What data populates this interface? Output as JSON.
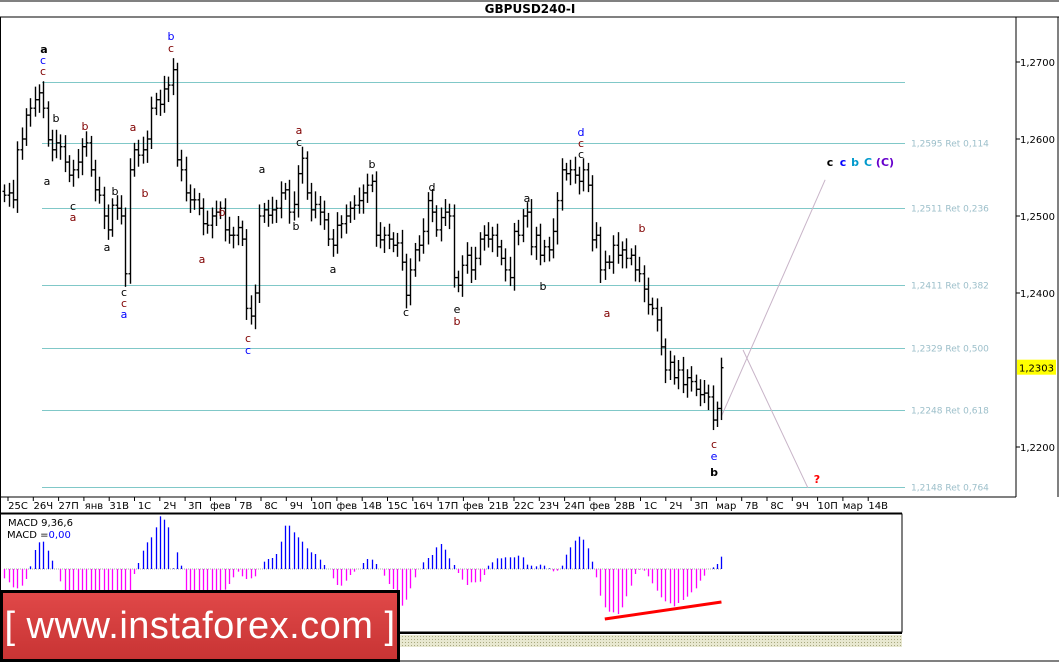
{
  "title": "GBPUSD240-I",
  "colors": {
    "bars": "#000000",
    "fib_line": "#80c8c8",
    "fib_text": "#9cbfca",
    "macd_positive": "#0000ff",
    "macd_negative": "#ff00ff",
    "divergence_line": "#ff0000",
    "current_price_bg": "#ffff00",
    "projection_line": "#c8b4c8",
    "logo_bg": "#d63c3c"
  },
  "chart_data": {
    "type": "ohlc",
    "symbol": "GBPUSD240-I",
    "ylim": [
      1.2138,
      1.2757
    ],
    "y_ticks": [
      {
        "value": 1.27,
        "label": "1,2700"
      },
      {
        "value": 1.26,
        "label": "1,2600"
      },
      {
        "value": 1.25,
        "label": "1,2500"
      },
      {
        "value": 1.24,
        "label": "1,2400"
      },
      {
        "value": 1.22,
        "label": "1,2200"
      }
    ],
    "current_price": {
      "value": 1.2303,
      "label": "1,2303"
    },
    "x_tick_labels": [
      "25С",
      "26Ч",
      "27П",
      "янв",
      "31В",
      "1С",
      "2Ч",
      "3П",
      "фев",
      "7В",
      "8С",
      "9Ч",
      "10П",
      "фев",
      "14В",
      "15С",
      "16Ч",
      "17П",
      "фев",
      "21В",
      "22С",
      "23Ч",
      "24П",
      "фев",
      "28В",
      "1С",
      "2Ч",
      "3П",
      "мар",
      "7В",
      "8С",
      "9Ч",
      "10П",
      "мар",
      "14В"
    ],
    "closes": [
      1.2527,
      1.253,
      1.2521,
      1.2586,
      1.26,
      1.2631,
      1.264,
      1.2651,
      1.266,
      1.264,
      1.2599,
      1.2586,
      1.2595,
      1.259,
      1.257,
      1.2553,
      1.256,
      1.257,
      1.259,
      1.2595,
      1.256,
      1.2534,
      1.2527,
      1.25,
      1.2482,
      1.2514,
      1.251,
      1.25,
      1.2425,
      1.256,
      1.2586,
      1.2579,
      1.2586,
      1.26,
      1.264,
      1.2651,
      1.2645,
      1.2665,
      1.267,
      1.269,
      1.2573,
      1.256,
      1.253,
      1.2521,
      1.2521,
      1.251,
      1.249,
      1.2488,
      1.25,
      1.2505,
      1.251,
      1.2482,
      1.2475,
      1.2475,
      1.2485,
      1.247,
      1.238,
      1.237,
      1.24,
      1.25,
      1.2508,
      1.2501,
      1.2508,
      1.251,
      1.253,
      1.2534,
      1.2505,
      1.2515,
      1.2555,
      1.2575,
      1.253,
      1.2508,
      1.2515,
      1.2505,
      1.2495,
      1.247,
      1.2462,
      1.2488,
      1.249,
      1.25,
      1.251,
      1.2514,
      1.252,
      1.253,
      1.254,
      1.2545,
      1.2475,
      1.2469,
      1.2475,
      1.247,
      1.2462,
      1.2465,
      1.244,
      1.2397,
      1.243,
      1.2456,
      1.2462,
      1.248,
      1.252,
      1.2505,
      1.2482,
      1.2498,
      1.2505,
      1.25,
      1.242,
      1.241,
      1.2436,
      1.2449,
      1.243,
      1.2445,
      1.247,
      1.2475,
      1.247,
      1.2475,
      1.246,
      1.2445,
      1.243,
      1.242,
      1.248,
      1.2475,
      1.25,
      1.2505,
      1.246,
      1.2475,
      1.2449,
      1.246,
      1.2456,
      1.248,
      1.252,
      1.256,
      1.2555,
      1.256,
      1.2553,
      1.2545,
      1.256,
      1.254,
      1.2469,
      1.2475,
      1.243,
      1.244,
      1.244,
      1.2462,
      1.2449,
      1.2456,
      1.2445,
      1.2449,
      1.243,
      1.2425,
      1.2405,
      1.2385,
      1.238,
      1.2365,
      1.233,
      1.23,
      1.231,
      1.229,
      1.23,
      1.2281,
      1.229,
      1.2285,
      1.2275,
      1.2268,
      1.227,
      1.2265,
      1.2235,
      1.225,
      1.2303
    ],
    "fib_levels": [
      {
        "price": 1.2674,
        "label": ""
      },
      {
        "price": 1.2595,
        "label": "1,2595 Ret 0,114"
      },
      {
        "price": 1.2511,
        "label": "1,2511 Ret 0,236"
      },
      {
        "price": 1.2411,
        "label": "1,2411 Ret 0,382"
      },
      {
        "price": 1.2329,
        "label": "1,2329 Ret 0,500"
      },
      {
        "price": 1.2248,
        "label": "1,2248 Ret 0,618"
      },
      {
        "price": 1.2148,
        "label": "1,2148 Ret 0,764"
      }
    ],
    "projections": [
      {
        "from": {
          "bar": 166,
          "price": 1.224
        },
        "to": {
          "bar": 190,
          "price": 1.2547
        }
      },
      {
        "from": {
          "bar": 171,
          "price": 1.2326
        },
        "to": {
          "bar": 186,
          "price": 1.2147
        }
      }
    ],
    "wave_labels": [
      {
        "text": "a",
        "color": "#000000",
        "bold": true
      },
      {
        "text": "c",
        "color": "#0000ff"
      },
      {
        "text": "c",
        "color": "#800000"
      },
      {
        "text": "b",
        "color": "#000000"
      },
      {
        "text": "b",
        "color": "#800000"
      },
      {
        "text": "a",
        "color": "#000000"
      },
      {
        "text": "c",
        "color": "#000000"
      },
      {
        "text": "a",
        "color": "#800000"
      },
      {
        "text": "b",
        "color": "#000000"
      },
      {
        "text": "a",
        "color": "#800000"
      },
      {
        "text": "b",
        "color": "#800000"
      },
      {
        "text": "b",
        "color": "#0000ff"
      },
      {
        "text": "c",
        "color": "#800000"
      },
      {
        "text": "a",
        "color": "#000000"
      },
      {
        "text": "c",
        "color": "#000000"
      },
      {
        "text": "c",
        "color": "#800000"
      },
      {
        "text": "a",
        "color": "#0000ff"
      },
      {
        "text": "b",
        "color": "#800000"
      },
      {
        "text": "a",
        "color": "#800000"
      },
      {
        "text": "c",
        "color": "#800000"
      },
      {
        "text": "c",
        "color": "#0000ff"
      },
      {
        "text": "a",
        "color": "#000000"
      },
      {
        "text": "a",
        "color": "#800000"
      },
      {
        "text": "c",
        "color": "#000000"
      },
      {
        "text": "b",
        "color": "#000000"
      },
      {
        "text": "b",
        "color": "#000000"
      },
      {
        "text": "a",
        "color": "#000000"
      },
      {
        "text": "d",
        "color": "#000000"
      },
      {
        "text": "c",
        "color": "#000000"
      },
      {
        "text": "e",
        "color": "#000000"
      },
      {
        "text": "b",
        "color": "#800000"
      },
      {
        "text": "d",
        "color": "#0000ff"
      },
      {
        "text": "c",
        "color": "#800000"
      },
      {
        "text": "c",
        "color": "#000000"
      },
      {
        "text": "a",
        "color": "#000000"
      },
      {
        "text": "b",
        "color": "#000000"
      },
      {
        "text": "b",
        "color": "#800000"
      },
      {
        "text": "a",
        "color": "#800000"
      },
      {
        "text": "c",
        "color": "#800000"
      },
      {
        "text": "e",
        "color": "#0000ff"
      },
      {
        "text": "b",
        "color": "#000000",
        "bold": true
      },
      {
        "text": "c",
        "color": "#000000",
        "bold": true
      },
      {
        "text": "c",
        "color": "#0000ff",
        "bold": true
      },
      {
        "text": "b",
        "color": "#0099cc",
        "bold": true
      },
      {
        "text": "C",
        "color": "#0099cc",
        "bold": true
      },
      {
        "text": "(C)",
        "color": "#6600cc",
        "bold": true
      },
      {
        "text": "?",
        "color": "#ff0000",
        "bold": true
      }
    ],
    "macd": {
      "label": "MACD 9,36,6",
      "value_prefix": "MACD =",
      "value": "0,00",
      "histogram": [
        -0.00028,
        -0.0004,
        -0.00055,
        -0.00058,
        -0.0005,
        -0.0003,
        8e-05,
        0.00057,
        0.0008,
        0.00082,
        0.00055,
        0.00025,
        0,
        -0.00037,
        -0.00065,
        -0.00075,
        -0.0008,
        -0.00085,
        -0.00088,
        -0.0009,
        -0.0009,
        -0.00088,
        -0.00085,
        -0.00082,
        -0.0008,
        -0.00078,
        -0.00075,
        -0.00072,
        -0.0007,
        -0.00065,
        -0.00015,
        0.00018,
        0.00055,
        0.0008,
        0.00095,
        0.00125,
        0.00158,
        0.00148,
        0.00125,
        2e-05,
        0.0005,
        0.0001,
        -0.00065,
        -0.00075,
        -0.00078,
        -0.0008,
        -0.00078,
        -0.00075,
        -0.00072,
        -0.0007,
        -0.00068,
        -0.00062,
        -0.00045,
        -0.00025,
        -8e-05,
        -0.00022,
        -0.0003,
        -0.00028,
        -0.00022,
        0,
        0.00022,
        0.0003,
        0.00033,
        0.00045,
        0.00082,
        0.0013,
        0.0013,
        0.0011,
        0.00095,
        0.00082,
        0.00062,
        0.0005,
        0.00045,
        0.00028,
        0.00012,
        0,
        -0.00028,
        -0.00048,
        -0.0005,
        -0.00035,
        -0.00018,
        -8e-05,
        0,
        0.00018,
        0.0003,
        0.00028,
        0.00015,
        0,
        -0.0002,
        -0.00045,
        -0.0006,
        -0.0009,
        -0.0011,
        -0.00092,
        -0.00058,
        -0.00025,
        0,
        0.0002,
        0.00033,
        0.00042,
        0.00065,
        0.00075,
        0.00058,
        0.00032,
        0.00012,
        -0.00012,
        -0.00032,
        -0.00048,
        -0.0004,
        -0.0004,
        -0.00038,
        -0.00018,
        0.0001,
        0.0002,
        0.00032,
        0.00032,
        0.00035,
        0.00035,
        0.00035,
        0.0004,
        0.00035,
        0.00013,
        0.0001,
        8e-05,
        0.00013,
        0.0001,
        2e-05,
        -7e-05,
        -5e-05,
        0.0001,
        0.00043,
        0.00065,
        0.00085,
        0.00097,
        0.00088,
        0.00062,
        0.00022,
        -0.00025,
        -0.0008,
        -0.00115,
        -0.00128,
        -0.0013,
        -0.00135,
        -0.00115,
        -0.00082,
        -0.0005,
        -0.00015,
        -2e-05,
        -5e-05,
        -0.00022,
        -0.00043,
        -0.00065,
        -0.00085,
        -0.00097,
        -0.00103,
        -0.00112,
        -0.00102,
        -0.00093,
        -0.00083,
        -0.0007,
        -0.00058,
        -0.00035,
        -0.0002,
        0,
        5e-05,
        0.00015,
        0.00037
      ],
      "divergence_line": {
        "from": {
          "bar": 139,
          "value": -0.0015
        },
        "to": {
          "bar": 166,
          "value": -0.00099
        }
      }
    }
  },
  "logo": {
    "text": "[ www.instaforex.com ]"
  }
}
